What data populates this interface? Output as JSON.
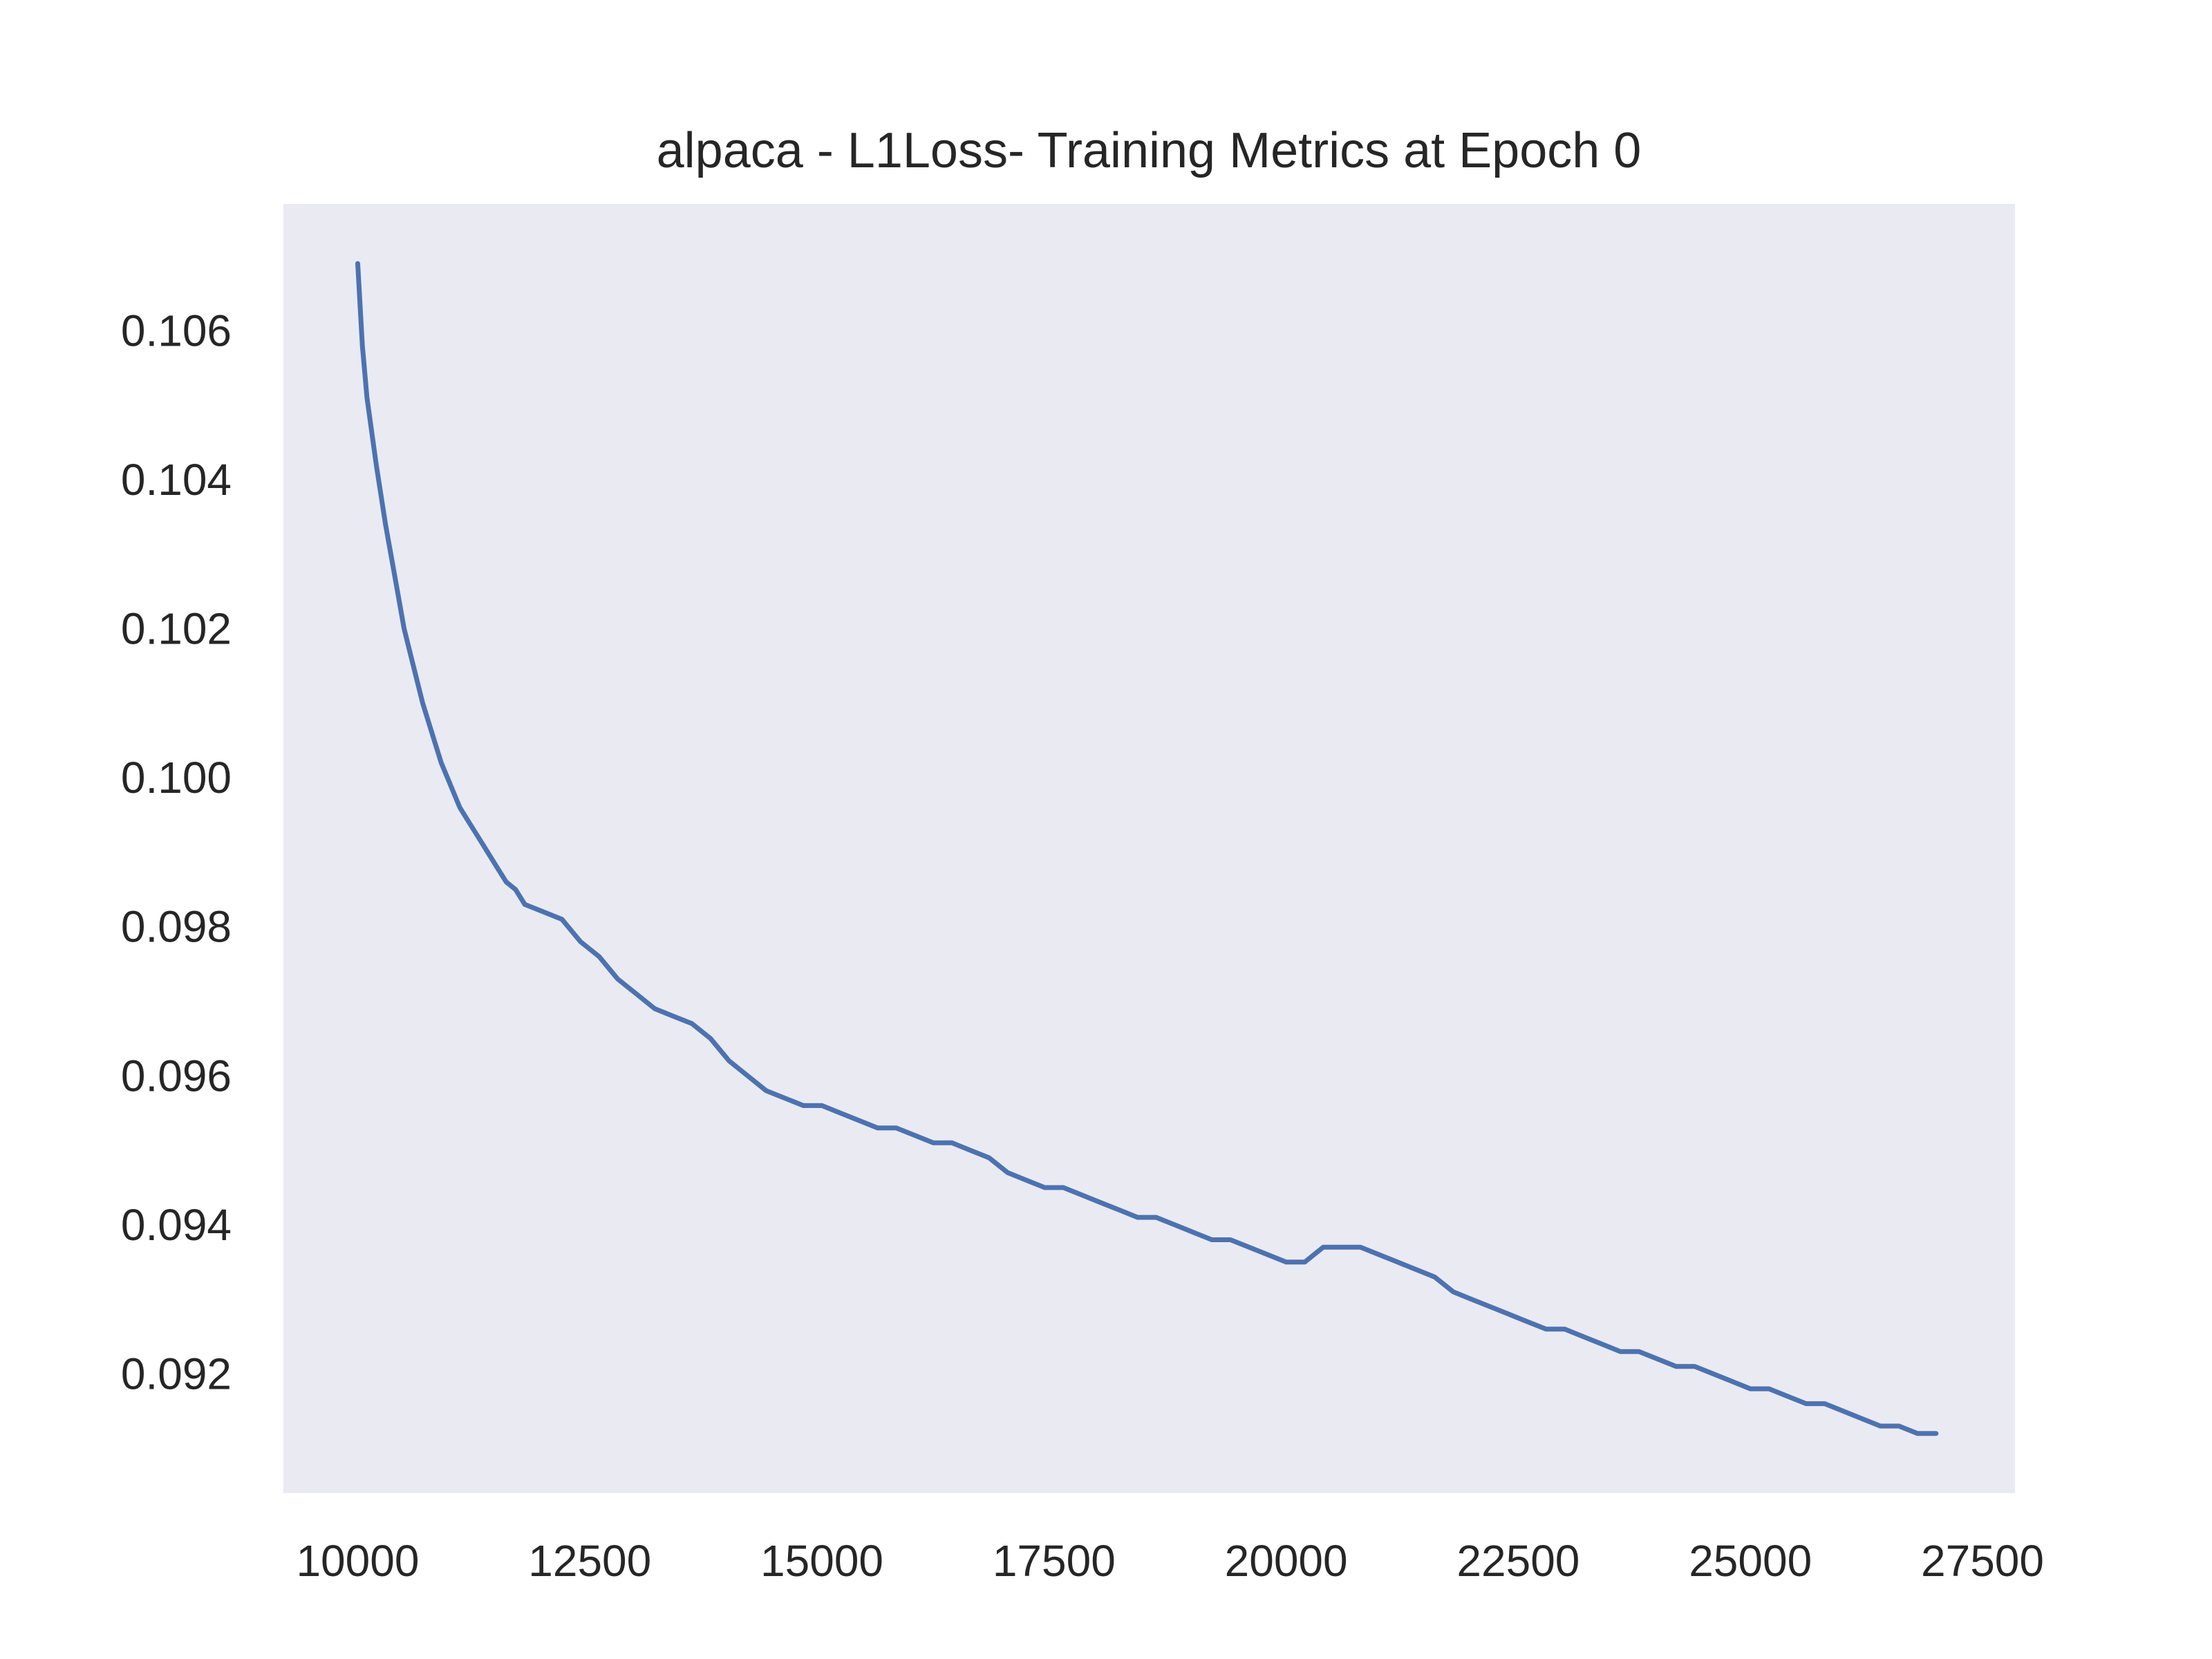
{
  "chart_data": {
    "type": "line",
    "title": "alpaca - L1Loss- Training Metrics at Epoch 0",
    "xlabel": "",
    "ylabel": "",
    "xlim": [
      9200,
      27850
    ],
    "ylim": [
      0.0904,
      0.1077
    ],
    "grid": false,
    "x_ticks": [
      10000,
      12500,
      15000,
      17500,
      20000,
      22500,
      25000,
      27500
    ],
    "y_ticks": [
      0.092,
      0.094,
      0.096,
      0.098,
      0.1,
      0.102,
      0.104,
      0.106
    ],
    "x_tick_labels": [
      "10000",
      "12500",
      "15000",
      "17500",
      "20000",
      "22500",
      "25000",
      "27500"
    ],
    "y_tick_labels": [
      "0.092",
      "0.094",
      "0.096",
      "0.098",
      "0.100",
      "0.102",
      "0.104",
      "0.106"
    ],
    "colors": {
      "background": "#eaeaf2",
      "line": "#4c72b0",
      "text": "#262626"
    },
    "series": [
      {
        "x": [
          10000,
          10050,
          10100,
          10200,
          10300,
          10400,
          10500,
          10600,
          10700,
          10800,
          10900,
          11000,
          11100,
          11200,
          11300,
          11400,
          11500,
          11600,
          11700,
          11800,
          12000,
          12200,
          12400,
          12600,
          12800,
          13000,
          13200,
          13400,
          13600,
          13800,
          14000,
          14200,
          14400,
          14600,
          14800,
          15000,
          15200,
          15400,
          15600,
          15800,
          16000,
          16200,
          16400,
          16600,
          16800,
          17000,
          17200,
          17400,
          17600,
          17800,
          18000,
          18200,
          18400,
          18600,
          18800,
          19000,
          19200,
          19400,
          19600,
          19800,
          20000,
          20200,
          20400,
          20600,
          20800,
          21000,
          21200,
          21400,
          21600,
          21800,
          22000,
          22200,
          22400,
          22600,
          22800,
          23000,
          23200,
          23400,
          23600,
          23800,
          24000,
          24200,
          24400,
          24600,
          24800,
          25000,
          25200,
          25400,
          25600,
          25800,
          26000,
          26200,
          26400,
          26600,
          26800,
          27000
        ],
        "values": [
          0.1069,
          0.1058,
          0.1051,
          0.1042,
          0.1034,
          0.1027,
          0.102,
          0.1015,
          0.101,
          0.1006,
          0.1002,
          0.0999,
          0.0996,
          0.0994,
          0.0992,
          0.099,
          0.0988,
          0.0986,
          0.0985,
          0.0983,
          0.0982,
          0.0981,
          0.0978,
          0.0976,
          0.0973,
          0.0971,
          0.0969,
          0.0968,
          0.0967,
          0.0965,
          0.0962,
          0.096,
          0.0958,
          0.0957,
          0.0956,
          0.0956,
          0.0955,
          0.0954,
          0.0953,
          0.0953,
          0.0952,
          0.0951,
          0.0951,
          0.095,
          0.0949,
          0.0947,
          0.0946,
          0.0945,
          0.0945,
          0.0944,
          0.0943,
          0.0942,
          0.0941,
          0.0941,
          0.094,
          0.0939,
          0.0938,
          0.0938,
          0.0937,
          0.0936,
          0.0935,
          0.0935,
          0.0937,
          0.0937,
          0.0937,
          0.0936,
          0.0935,
          0.0934,
          0.0933,
          0.0931,
          0.093,
          0.0929,
          0.0928,
          0.0927,
          0.0926,
          0.0926,
          0.0925,
          0.0924,
          0.0923,
          0.0923,
          0.0922,
          0.0921,
          0.0921,
          0.092,
          0.0919,
          0.0918,
          0.0918,
          0.0917,
          0.0916,
          0.0916,
          0.0915,
          0.0914,
          0.0913,
          0.0913,
          0.0912,
          0.0912
        ]
      }
    ]
  }
}
